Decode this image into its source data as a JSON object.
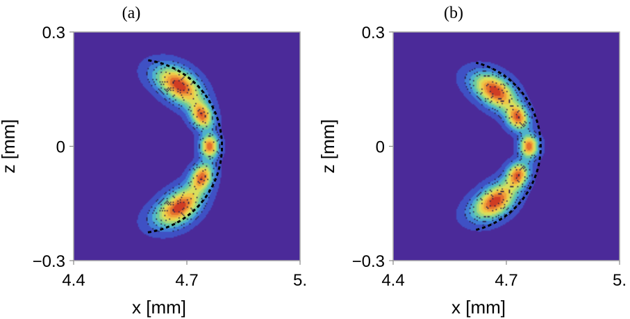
{
  "chart_data": [
    {
      "type": "heatmap",
      "title": "(a)",
      "xlabel": "x [mm]",
      "ylabel": "z [mm]",
      "xlim": [
        4.4,
        5.0
      ],
      "ylim": [
        -0.3,
        0.3
      ],
      "x_ticks": [
        "4.4",
        "4.7",
        "5."
      ],
      "y_ticks": [
        "0.3",
        "0",
        "−0.3"
      ],
      "x_tick_values": [
        4.4,
        4.7,
        5.0
      ],
      "y_tick_values": [
        0.3,
        0.0,
        -0.3
      ],
      "boundary_arc": {
        "center_x": 4.565,
        "center_z": 0.0,
        "radius": 0.228,
        "angle_range_deg": [
          -82,
          82
        ],
        "style": "dashed"
      },
      "peaks": [
        {
          "x": 4.68,
          "z": 0.16,
          "amplitude": 1.0,
          "sigma_r": 0.025,
          "sigma_t": 0.045
        },
        {
          "x": 4.74,
          "z": 0.08,
          "amplitude": 0.85,
          "sigma_r": 0.018,
          "sigma_t": 0.024
        },
        {
          "x": 4.76,
          "z": 0.0,
          "amplitude": 0.9,
          "sigma_r": 0.016,
          "sigma_t": 0.02
        },
        {
          "x": 4.74,
          "z": -0.08,
          "amplitude": 0.85,
          "sigma_r": 0.018,
          "sigma_t": 0.024
        },
        {
          "x": 4.68,
          "z": -0.16,
          "amplitude": 1.0,
          "sigma_r": 0.025,
          "sigma_t": 0.045
        }
      ],
      "contour_levels": 10,
      "colormap": [
        "#4b2a99",
        "#3f51c4",
        "#3f7fd6",
        "#4fb2cc",
        "#6ccaa0",
        "#a6d87c",
        "#d8df5c",
        "#f0c848",
        "#efa13c",
        "#e4702e",
        "#cf3d24"
      ]
    },
    {
      "type": "heatmap",
      "title": "(b)",
      "xlabel": "x [mm]",
      "ylabel": "z [mm]",
      "xlim": [
        4.4,
        5.0
      ],
      "ylim": [
        -0.3,
        0.3
      ],
      "x_ticks": [
        "4.4",
        "4.7",
        "5."
      ],
      "y_ticks": [
        "0.3",
        "0",
        "−0.3"
      ],
      "x_tick_values": [
        4.4,
        4.7,
        5.0
      ],
      "y_tick_values": [
        0.3,
        0.0,
        -0.3
      ],
      "boundary_arc": {
        "center_x": 4.565,
        "center_z": 0.0,
        "radius": 0.226,
        "angle_range_deg": [
          -76,
          76
        ],
        "style": "dashed"
      },
      "peaks": [
        {
          "x": 4.67,
          "z": 0.145,
          "amplitude": 1.0,
          "sigma_r": 0.024,
          "sigma_t": 0.042
        },
        {
          "x": 4.73,
          "z": 0.075,
          "amplitude": 0.85,
          "sigma_r": 0.018,
          "sigma_t": 0.022
        },
        {
          "x": 4.76,
          "z": 0.0,
          "amplitude": 0.9,
          "sigma_r": 0.016,
          "sigma_t": 0.02
        },
        {
          "x": 4.73,
          "z": -0.075,
          "amplitude": 0.85,
          "sigma_r": 0.018,
          "sigma_t": 0.022
        },
        {
          "x": 4.67,
          "z": -0.145,
          "amplitude": 1.0,
          "sigma_r": 0.024,
          "sigma_t": 0.042
        }
      ],
      "contour_levels": 10,
      "colormap": [
        "#4b2a99",
        "#3f51c4",
        "#3f7fd6",
        "#4fb2cc",
        "#6ccaa0",
        "#a6d87c",
        "#d8df5c",
        "#f0c848",
        "#efa13c",
        "#e4702e",
        "#cf3d24"
      ]
    }
  ]
}
